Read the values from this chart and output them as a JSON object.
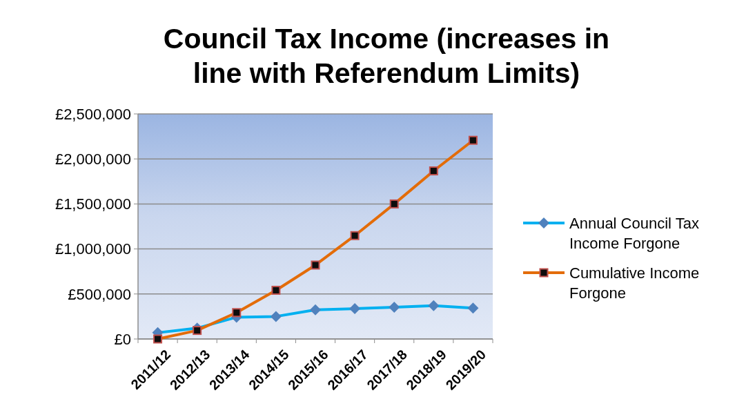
{
  "chart_data": {
    "type": "line",
    "title": "Council Tax Income (increases in line with Referendum Limits)",
    "categories": [
      "2011/12",
      "2012/13",
      "2013/14",
      "2014/15",
      "2015/16",
      "2016/17",
      "2017/18",
      "2018/19",
      "2019/20"
    ],
    "series": [
      {
        "name": "Annual Council Tax Income Forgone",
        "color": "#00b0f0",
        "marker": "diamond",
        "values": [
          70000,
          120000,
          242000,
          250000,
          324000,
          337000,
          352000,
          370000,
          344000
        ]
      },
      {
        "name": "Cumulative Income Forgone",
        "color": "#e36c09",
        "marker": "square",
        "values": [
          0,
          95000,
          293000,
          541000,
          821000,
          1148000,
          1500000,
          1867000,
          2207000
        ]
      }
    ],
    "ylim": [
      0,
      2500000
    ],
    "yticks": [
      {
        "value": 0,
        "label": "£0"
      },
      {
        "value": 500000,
        "label": "£500,000"
      },
      {
        "value": 1000000,
        "label": "£1,000,000"
      },
      {
        "value": 1500000,
        "label": "£1,500,000"
      },
      {
        "value": 2000000,
        "label": "£2,000,000"
      },
      {
        "value": 2500000,
        "label": "£2,500,000"
      }
    ],
    "grid": "y",
    "legend": "right"
  }
}
